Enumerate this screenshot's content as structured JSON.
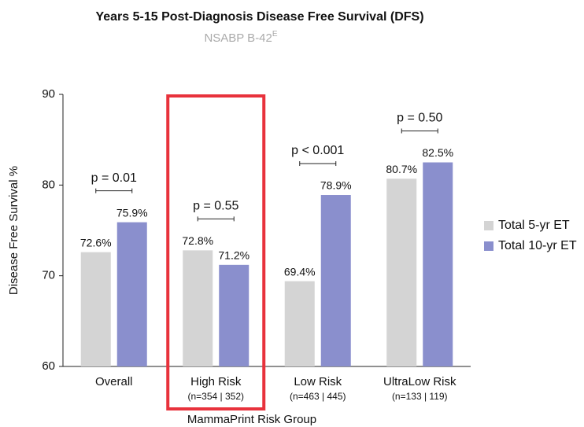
{
  "chart_data": {
    "type": "bar",
    "title": "Years 5-15 Post-Diagnosis Disease Free Survival (DFS)",
    "subtitle": "NSABP B-42",
    "subtitle_superscript": "E",
    "x_label": "MammaPrint Risk Group",
    "y_label": "Disease Free Survival  %",
    "categories": [
      "Overall",
      "High Risk",
      "Low Risk",
      "UltraLow Risk"
    ],
    "category_sublabels": [
      null,
      "(n=354 | 352)",
      "(n=463 | 445)",
      "(n=133 | 119)"
    ],
    "series": [
      {
        "name": "Total 5-yr ET",
        "color": "#d4d4d4",
        "values": [
          72.6,
          72.8,
          69.4,
          80.7
        ],
        "value_labels": [
          "72.6%",
          "72.8%",
          "69.4%",
          "80.7%"
        ]
      },
      {
        "name": "Total 10-yr ET",
        "color": "#8a8fcd",
        "values": [
          75.9,
          71.2,
          78.9,
          82.5
        ],
        "value_labels": [
          "75.9%",
          "71.2%",
          "78.9%",
          "82.5%"
        ]
      }
    ],
    "annotations": [
      "p = 0.01",
      "p = 0.55",
      "p < 0.001",
      "p = 0.50"
    ],
    "ylim": [
      60,
      90
    ],
    "yticks": [
      60,
      70,
      80,
      90
    ],
    "grid": false,
    "legend": "right",
    "highlight_category": 1,
    "highlight_color": "#e8323c"
  }
}
